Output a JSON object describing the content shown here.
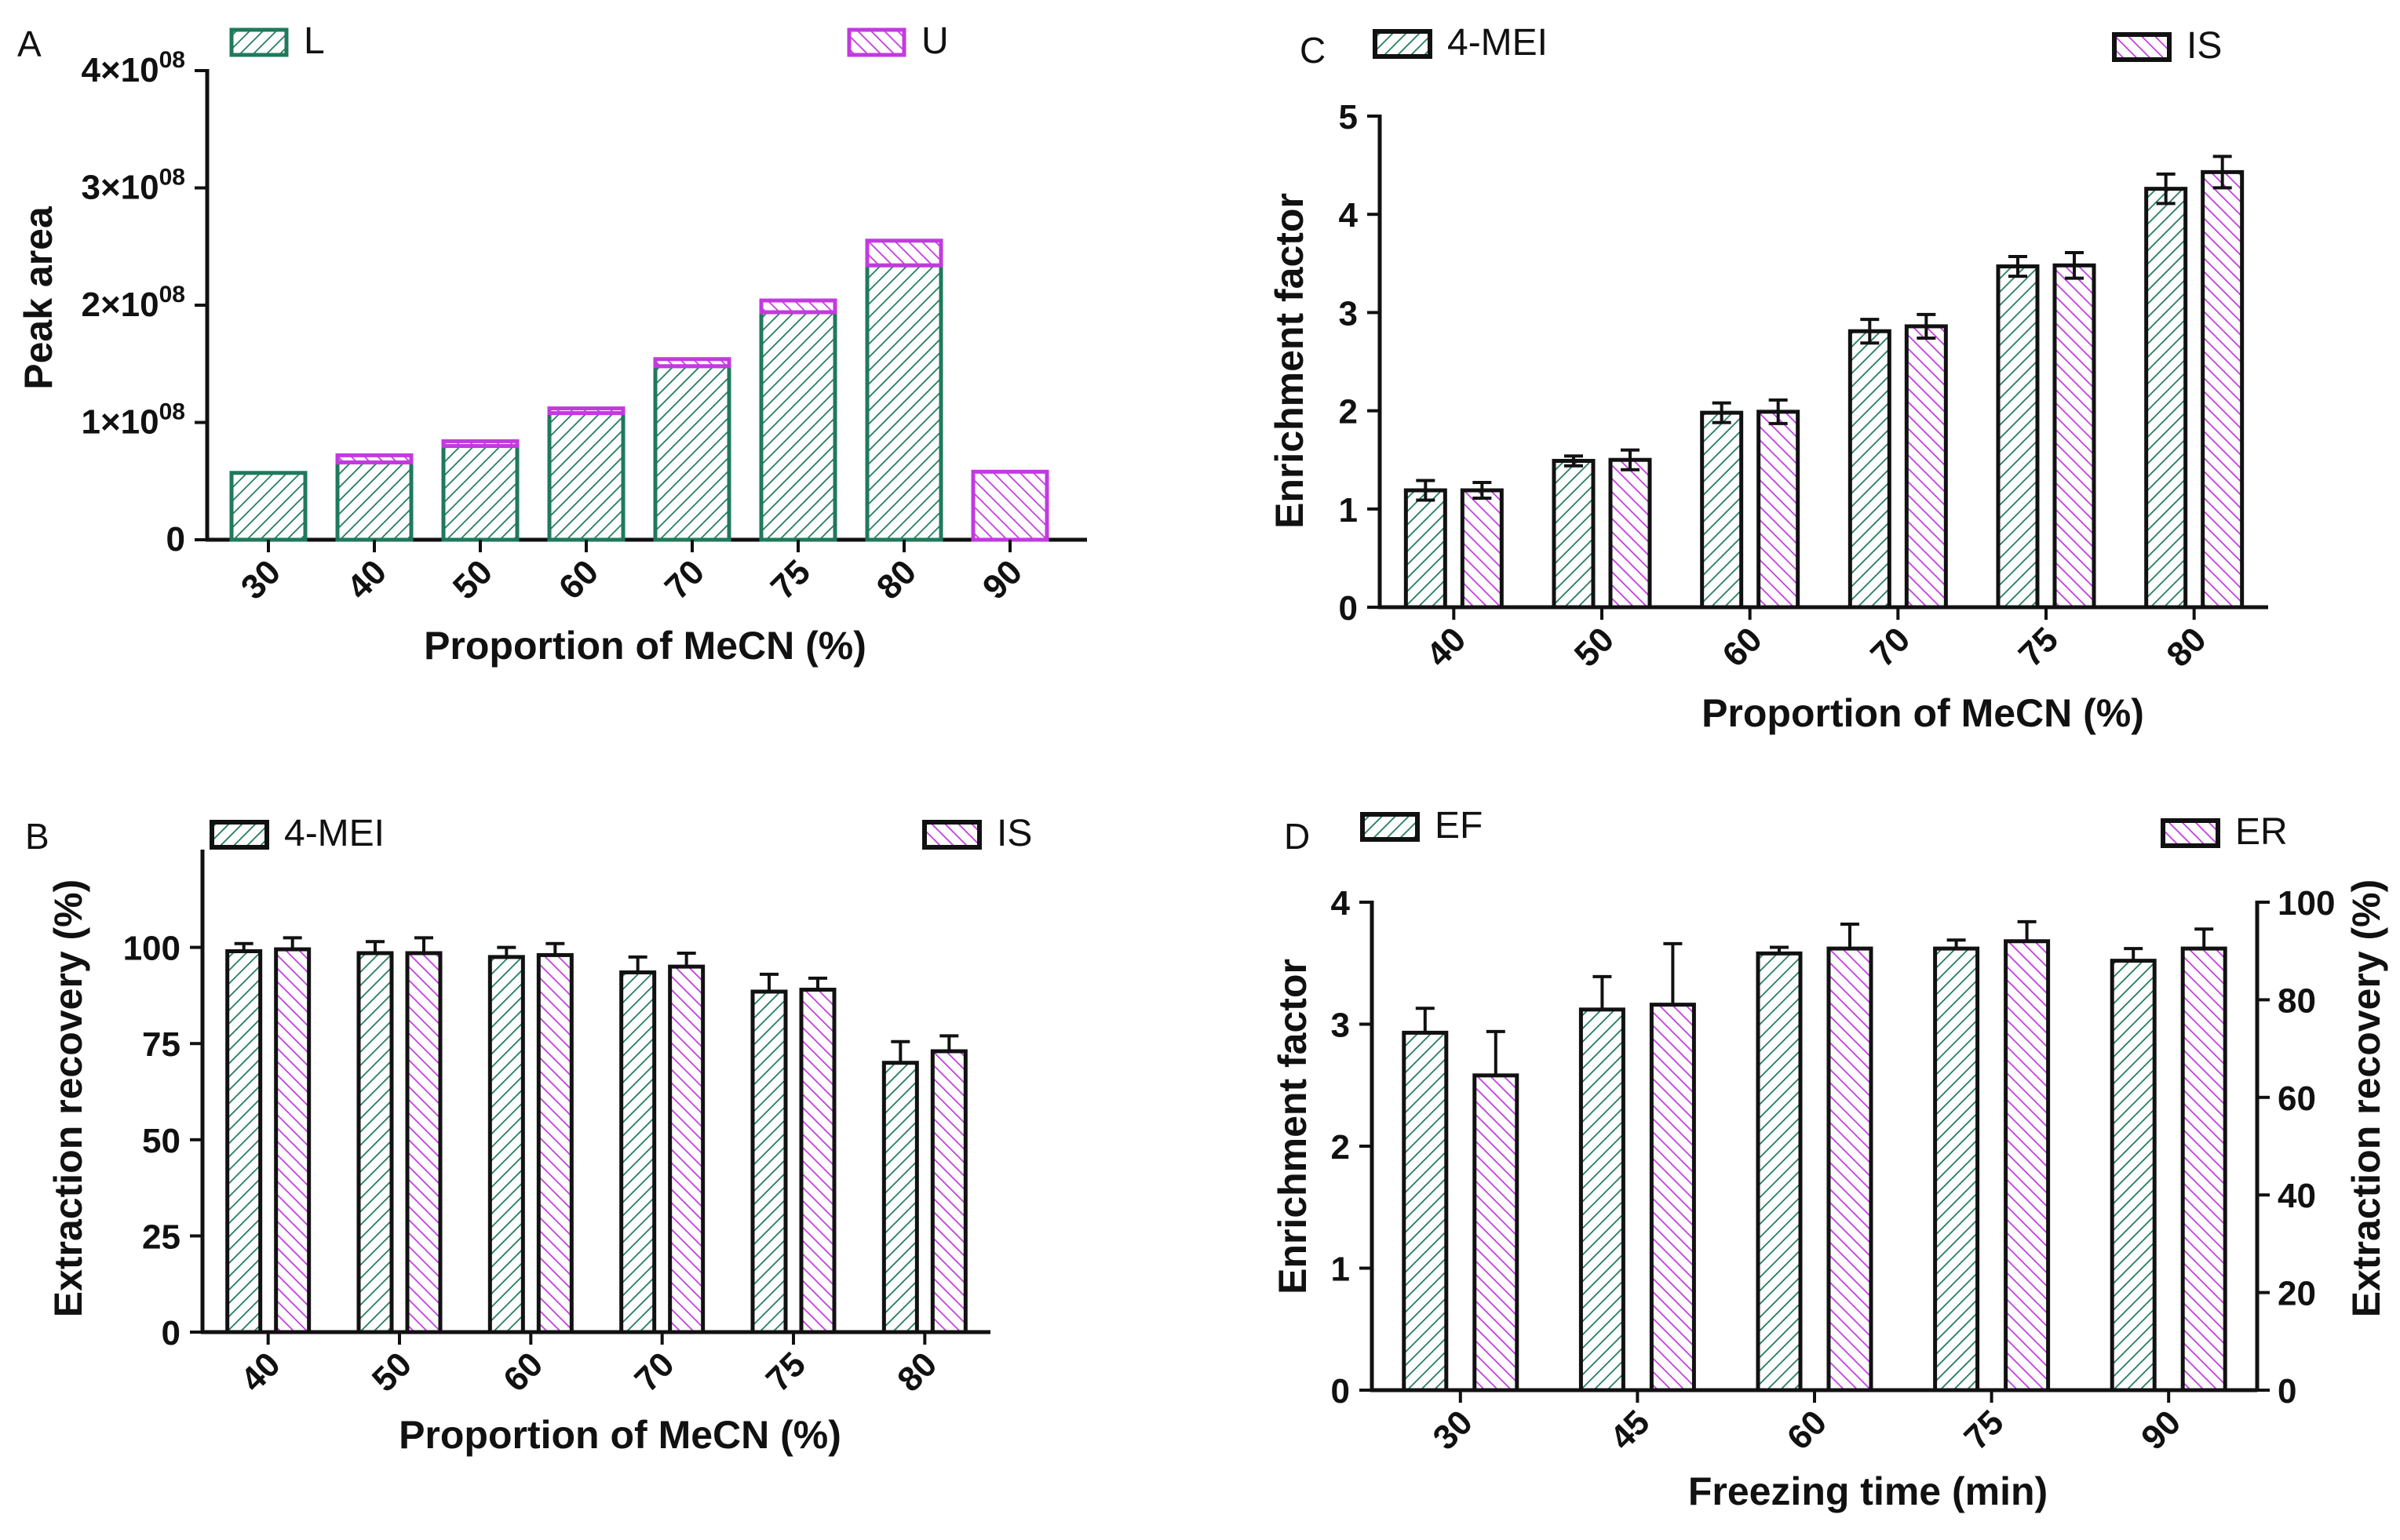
{
  "colors": {
    "series_a": "#1f7a5a",
    "series_b": "#c23adf",
    "outline_dark": "#111111"
  },
  "chart_data": [
    {
      "panel": "A",
      "type": "bar",
      "stacked": true,
      "categories": [
        "30",
        "40",
        "50",
        "60",
        "70",
        "75",
        "80",
        "90"
      ],
      "series": [
        {
          "name": "L",
          "values": [
            57000000,
            66000000,
            80000000,
            108000000,
            148000000,
            194000000,
            234000000,
            0
          ]
        },
        {
          "name": "U",
          "values": [
            0,
            6000000,
            4000000,
            4000000,
            6000000,
            10000000,
            21000000,
            58000000
          ]
        }
      ],
      "title": "",
      "xlabel": "Proportion of MeCN (%)",
      "ylabel": "Peak area",
      "ylim": [
        0,
        400000000
      ],
      "y_ticks": [
        0,
        100000000,
        200000000,
        300000000,
        400000000
      ],
      "y_tick_labels": [
        {
          "mant": "0",
          "exp": ""
        },
        {
          "mant": "1×10",
          "exp": "08"
        },
        {
          "mant": "2×10",
          "exp": "08"
        },
        {
          "mant": "3×10",
          "exp": "08"
        },
        {
          "mant": "4×10",
          "exp": "08"
        }
      ],
      "legend": "top",
      "grid": false
    },
    {
      "panel": "B",
      "type": "bar",
      "categories": [
        "40",
        "50",
        "60",
        "70",
        "75",
        "80"
      ],
      "series": [
        {
          "name": "4-MEI",
          "values": [
            99,
            98.5,
            97.5,
            93.5,
            88.5,
            70
          ],
          "errors": [
            2,
            3,
            2.5,
            4,
            4.5,
            5.5
          ]
        },
        {
          "name": "IS",
          "values": [
            99.5,
            98.5,
            98,
            95,
            89,
            73
          ],
          "errors": [
            3,
            4,
            3,
            3.5,
            3,
            4
          ]
        }
      ],
      "title": "",
      "xlabel": "Proportion of MeCN (%)",
      "ylabel": "Extraction recovery (%)",
      "ylim": [
        0,
        125
      ],
      "y_ticks": [
        0,
        25,
        50,
        75,
        100
      ],
      "legend": "top",
      "grid": false
    },
    {
      "panel": "C",
      "type": "bar",
      "categories": [
        "40",
        "50",
        "60",
        "70",
        "75",
        "80"
      ],
      "series": [
        {
          "name": "4-MEI",
          "values": [
            1.19,
            1.49,
            1.98,
            2.81,
            3.47,
            4.26
          ],
          "errors": [
            0.1,
            0.05,
            0.1,
            0.12,
            0.1,
            0.15
          ]
        },
        {
          "name": "IS",
          "values": [
            1.19,
            1.5,
            1.99,
            2.86,
            3.48,
            4.43
          ],
          "errors": [
            0.08,
            0.1,
            0.12,
            0.12,
            0.13,
            0.16
          ]
        }
      ],
      "title": "",
      "xlabel": "Proportion of MeCN (%)",
      "ylabel": "Enrichment factor",
      "ylim": [
        0,
        5
      ],
      "y_ticks": [
        0,
        1,
        2,
        3,
        4,
        5
      ],
      "legend": "top",
      "grid": false
    },
    {
      "panel": "D",
      "type": "bar",
      "categories": [
        "30",
        "45",
        "60",
        "75",
        "90"
      ],
      "series": [
        {
          "name": "EF",
          "axis": "left",
          "values": [
            2.93,
            3.12,
            3.58,
            3.62,
            3.52
          ],
          "errors": [
            0.2,
            0.27,
            0.05,
            0.07,
            0.1
          ]
        },
        {
          "name": "ER",
          "axis": "right",
          "values": [
            64.5,
            79,
            90.5,
            92,
            90.5
          ],
          "errors": [
            9,
            12.5,
            5,
            4,
            4
          ]
        }
      ],
      "title": "",
      "xlabel": "Freezing time (min)",
      "ylabel": "Enrichment factor",
      "ylabel_right": "Extraction recovery (%)",
      "ylim": [
        0,
        4
      ],
      "ylim_right": [
        0,
        100
      ],
      "y_ticks": [
        0,
        1,
        2,
        3,
        4
      ],
      "y_ticks_right": [
        0,
        20,
        40,
        60,
        80,
        100
      ],
      "legend": "top",
      "grid": false
    }
  ]
}
